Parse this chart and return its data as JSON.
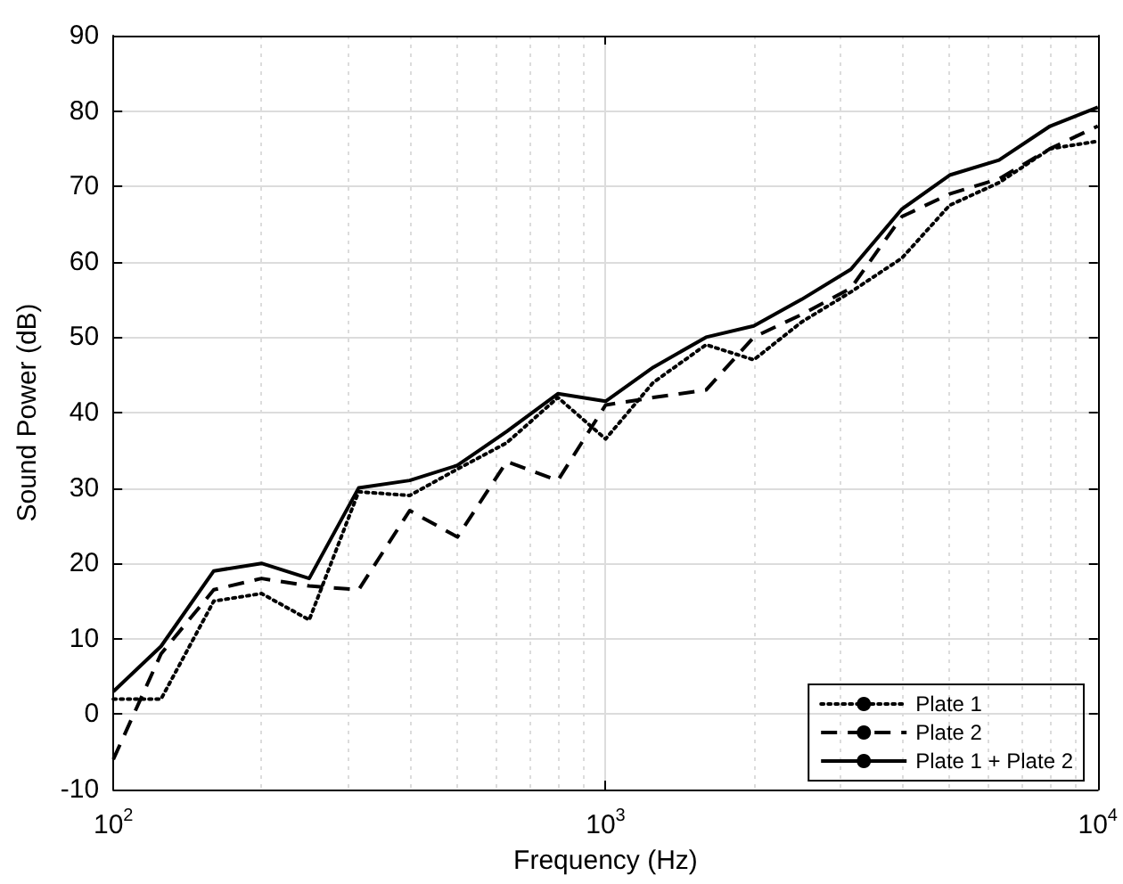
{
  "chart_data": {
    "type": "line",
    "xlabel": "Frequency (Hz)",
    "ylabel": "Sound Power (dB)",
    "x": [
      100,
      125,
      160,
      200,
      250,
      315,
      400,
      500,
      630,
      800,
      1000,
      1250,
      1600,
      2000,
      2500,
      3150,
      4000,
      5000,
      6300,
      8000,
      10000
    ],
    "series": [
      {
        "name": "Plate 1",
        "color": "#000000",
        "line_style": "dotted",
        "values": [
          2,
          2,
          15,
          16,
          12.5,
          29.5,
          29,
          32.5,
          36,
          42,
          36.5,
          44,
          49,
          47,
          52,
          56,
          60.5,
          67.5,
          70.5,
          75,
          76
        ]
      },
      {
        "name": "Plate 2",
        "color": "#000000",
        "line_style": "dashed",
        "values": [
          -6,
          8,
          16.5,
          18,
          17,
          16.5,
          27,
          23.5,
          33.5,
          31,
          41,
          42,
          43,
          50,
          53,
          56.5,
          66,
          69,
          71,
          75,
          78
        ]
      },
      {
        "name": "Plate 1 + Plate 2",
        "color": "#000000",
        "line_style": "solid",
        "values": [
          3,
          9,
          19,
          20,
          18,
          30,
          31,
          33,
          37.5,
          42.5,
          41.5,
          46,
          50,
          51.5,
          55,
          59,
          67,
          71.5,
          73.5,
          78,
          80.5
        ]
      }
    ],
    "log": "x",
    "xlim": [
      100,
      10000
    ],
    "xticks": [
      {
        "value": 100,
        "label": "10$^{2}$"
      },
      {
        "value": 1000,
        "label": "10$^{3}$"
      },
      {
        "value": 10000,
        "label": "10$^{4}$"
      }
    ],
    "ylim": [
      -10,
      90
    ],
    "yticks": [
      -10,
      0,
      10,
      20,
      30,
      40,
      50,
      60,
      70,
      80,
      90
    ],
    "grid": true,
    "legend": "bottom right",
    "marker": "none"
  }
}
